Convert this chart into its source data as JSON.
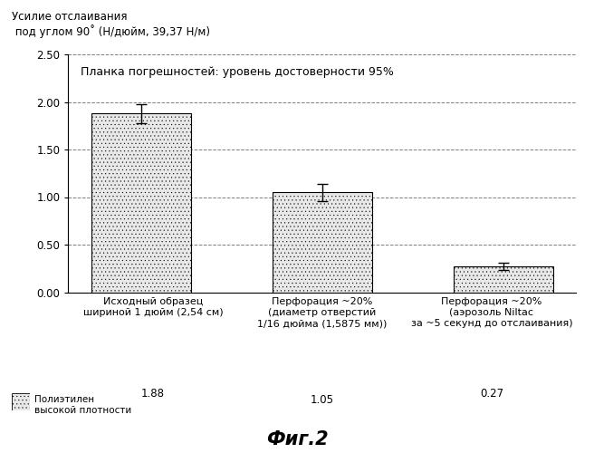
{
  "title_line1": "Усилие отслаивания",
  "title_line2": " под углом 90˚ (Н/дюйм, 39,37 Н/м)",
  "categories": [
    "Исходный образец\nшириной 1 дюйм (2,54 см)",
    "Перфорация ~20%\n(диаметр отверстий\n1/16 дюйма (1,5875 мм))",
    "Перфорация ~20%\n(аэрозоль Niltac\nза ~5 секунд до отслаивания)"
  ],
  "values": [
    1.88,
    1.05,
    0.27
  ],
  "errors": [
    0.1,
    0.09,
    0.04
  ],
  "value_labels": [
    "1.88",
    "1.05",
    "0.27"
  ],
  "bar_color": "#e8e8e8",
  "bar_hatch": "....",
  "bar_edgecolor": "#000000",
  "ylim": [
    0,
    2.5
  ],
  "yticks": [
    0.0,
    0.5,
    1.0,
    1.5,
    2.0,
    2.5
  ],
  "ytick_labels": [
    "0.00",
    "0.50",
    "1.00",
    "1.50",
    "2.00",
    "2.50"
  ],
  "annotation_text": "Планка погрешностей: уровень достоверности 95%",
  "legend_label": "Полиэтилен\nвысокой плотности",
  "figure_label": "Фиг.2",
  "grid_color": "#808080",
  "background_color": "#ffffff"
}
